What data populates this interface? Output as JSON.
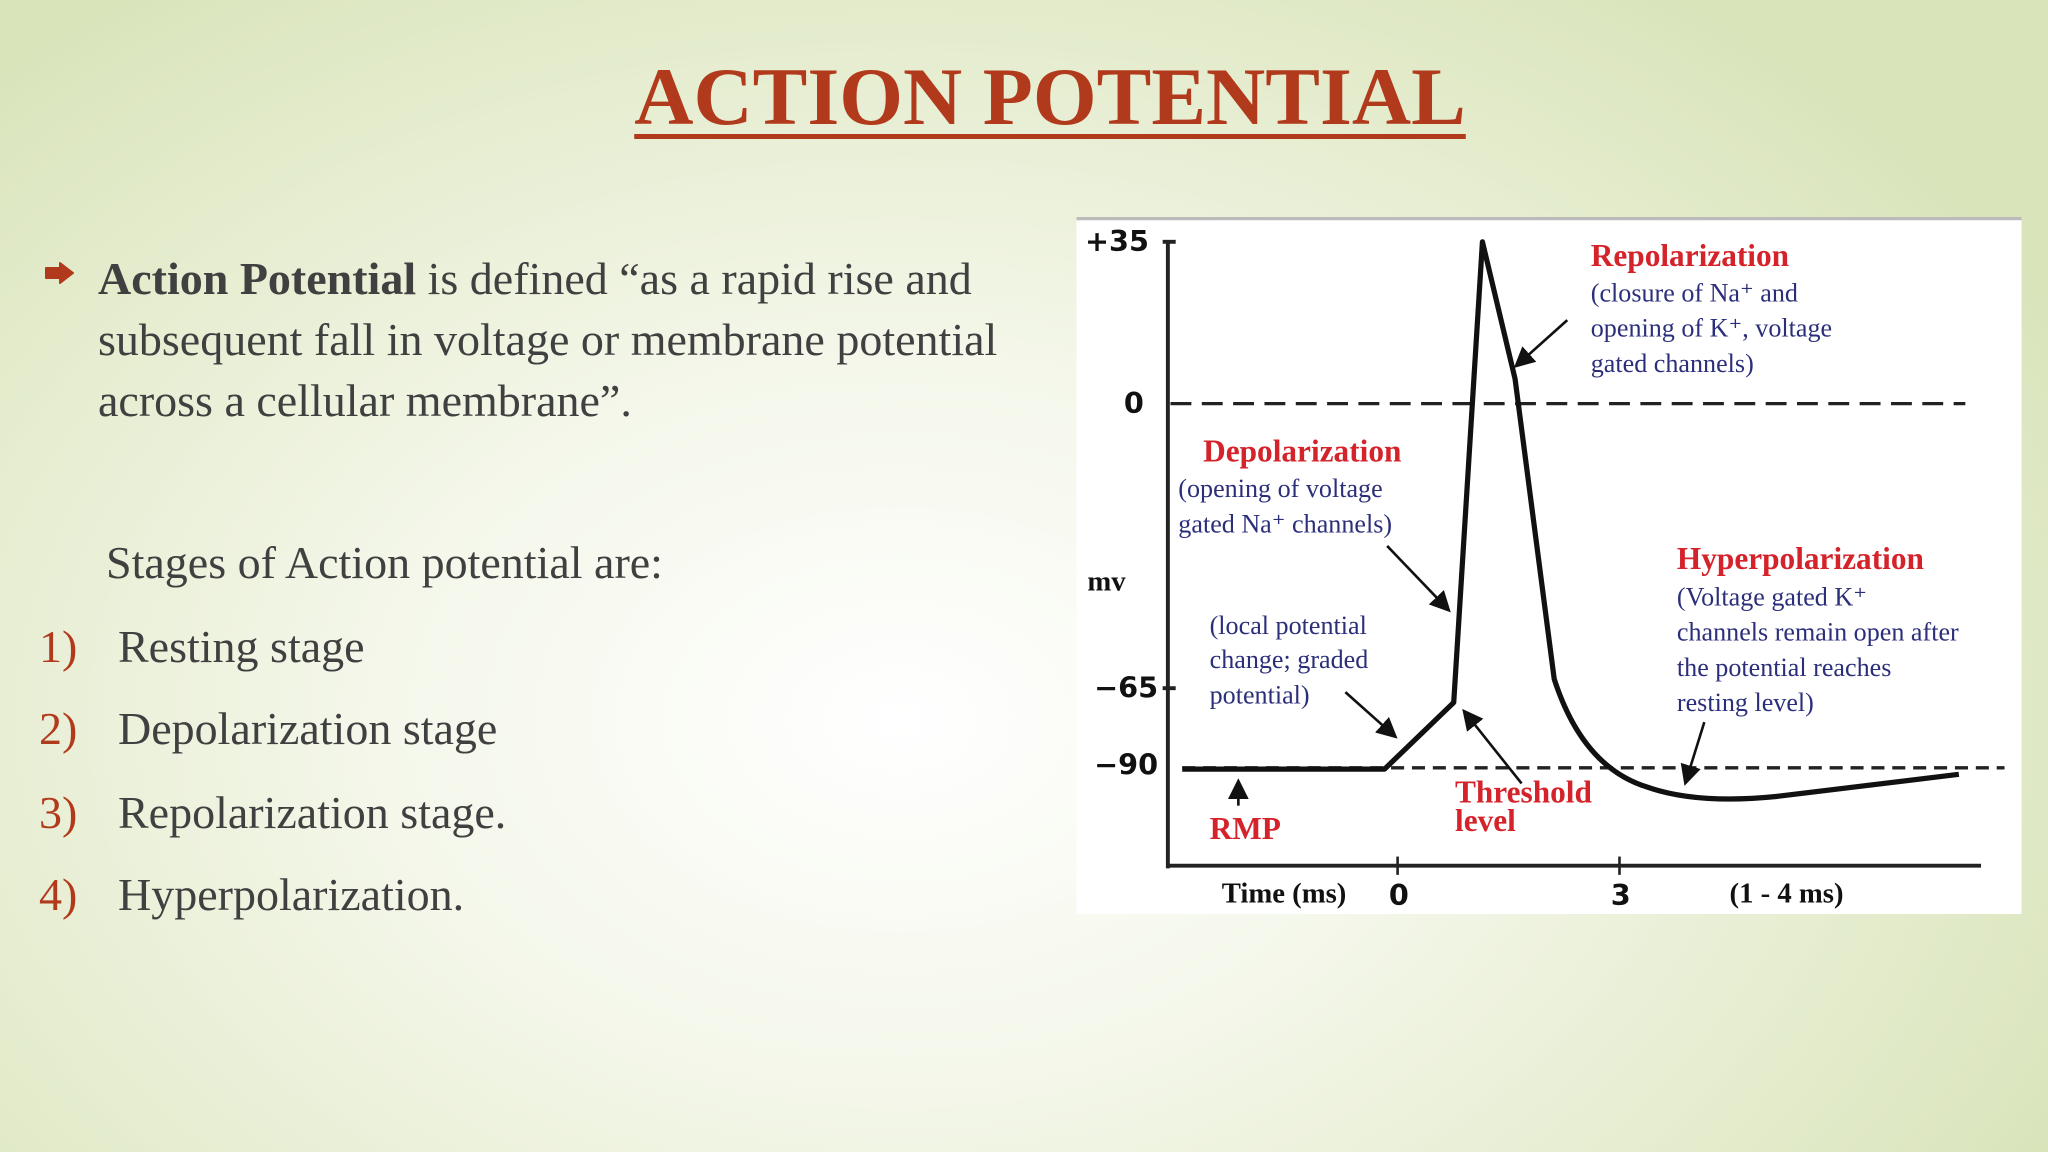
{
  "header": {
    "title": "ACTION POTENTIAL"
  },
  "definition": {
    "term": "Action Potential",
    "text": " is defined “as a rapid rise and subsequent fall in voltage or membrane potential across a cellular membrane”."
  },
  "stages": {
    "heading": "Stages of Action potential are:",
    "items": [
      {
        "number": "1)",
        "label": "Resting stage"
      },
      {
        "number": "2)",
        "label": "Depolarization stage"
      },
      {
        "number": "3)",
        "label": "Repolarization stage."
      },
      {
        "number": "4)",
        "label": "Hyperpolarization."
      }
    ]
  },
  "figure": {
    "y_axis_label": "mv",
    "y_ticks": [
      "+35",
      "0",
      "−65",
      "−90"
    ],
    "x_axis_label": "Time (ms)",
    "x_ticks": [
      "0",
      "3"
    ],
    "x_note": "(1 - 4 ms)",
    "repolarization": {
      "title": "Repolarization",
      "lines": [
        "(closure of Na⁺ and",
        "opening of K⁺, voltage",
        "gated channels)"
      ]
    },
    "depolarization": {
      "title": "Depolarization",
      "lines": [
        "(opening of voltage",
        "gated Na⁺ channels)"
      ]
    },
    "local_potential": {
      "lines": [
        "(local potential",
        "change; graded",
        "potential)"
      ]
    },
    "hyperpolarization": {
      "title": "Hyperpolarization",
      "lines": [
        "(Voltage gated K⁺",
        "channels remain open after",
        "the potential reaches",
        "resting level)"
      ]
    },
    "rmp": "RMP",
    "threshold": [
      "Threshold",
      "level"
    ]
  }
}
